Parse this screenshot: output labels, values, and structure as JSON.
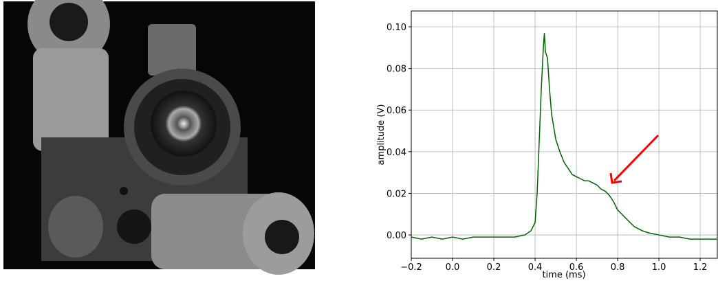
{
  "chart_data": {
    "type": "line",
    "x_label": "time (ms)",
    "y_label": "amplitude (V)",
    "x": [
      -0.2,
      -0.15,
      -0.1,
      -0.05,
      0,
      0.05,
      0.1,
      0.15,
      0.2,
      0.25,
      0.3,
      0.35,
      0.38,
      0.4,
      0.41,
      0.42,
      0.43,
      0.44,
      0.445,
      0.45,
      0.46,
      0.47,
      0.48,
      0.49,
      0.5,
      0.52,
      0.54,
      0.56,
      0.58,
      0.6,
      0.62,
      0.64,
      0.66,
      0.68,
      0.7,
      0.72,
      0.74,
      0.76,
      0.78,
      0.8,
      0.82,
      0.84,
      0.86,
      0.88,
      0.9,
      0.92,
      0.95,
      1.0,
      1.05,
      1.1,
      1.15,
      1.2,
      1.25,
      1.28
    ],
    "values": [
      -0.001,
      -0.002,
      -0.001,
      -0.002,
      -0.001,
      -0.002,
      -0.001,
      -0.001,
      -0.001,
      -0.001,
      -0.001,
      0,
      0.002,
      0.006,
      0.02,
      0.045,
      0.07,
      0.09,
      0.097,
      0.088,
      0.085,
      0.07,
      0.058,
      0.052,
      0.046,
      0.04,
      0.035,
      0.032,
      0.029,
      0.028,
      0.027,
      0.026,
      0.026,
      0.025,
      0.024,
      0.022,
      0.021,
      0.019,
      0.016,
      0.012,
      0.01,
      0.008,
      0.006,
      0.004,
      0.003,
      0.002,
      0.001,
      0,
      -0.001,
      -0.001,
      -0.002,
      -0.002,
      -0.002,
      -0.002
    ],
    "color": "#006400",
    "xlim": [
      -0.2,
      1.283
    ],
    "ylim": [
      -0.0112,
      0.1076
    ],
    "xticks": [
      {
        "value": -0.2,
        "label": "−0.2"
      },
      {
        "value": 0,
        "label": "0.0"
      },
      0.2,
      0.4,
      0.6,
      0.8,
      {
        "value": 1,
        "label": "1.0"
      },
      1.2
    ],
    "yticks": [
      {
        "value": 0,
        "label": "0.00"
      },
      {
        "value": 0.02,
        "label": "0.02"
      },
      {
        "value": 0.04,
        "label": "0.04"
      },
      {
        "value": 0.06,
        "label": "0.06"
      },
      {
        "value": 0.08,
        "label": "0.08"
      },
      {
        "value": 0.1,
        "label": "0.10"
      }
    ],
    "grid": true
  }
}
